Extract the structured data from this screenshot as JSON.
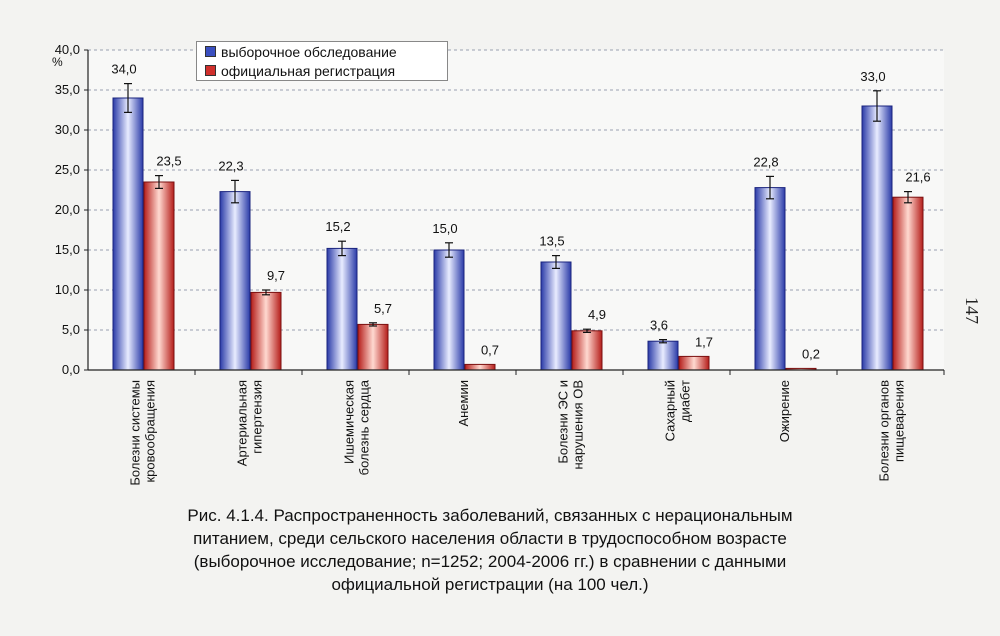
{
  "chart_data": {
    "type": "bar",
    "unit_label": "%",
    "ylim": [
      0,
      40
    ],
    "yticks": [
      "0,0",
      "5,0",
      "10,0",
      "15,0",
      "20,0",
      "25,0",
      "30,0",
      "35,0",
      "40,0"
    ],
    "grid": true,
    "categories": [
      [
        "Болезни системы",
        "кровообращения"
      ],
      [
        "Артериальная",
        "гипертензия"
      ],
      [
        "Ишемическая",
        "болезнь сердца"
      ],
      [
        "Анемии"
      ],
      [
        "Болезни ЭС и",
        "нарушения ОВ"
      ],
      [
        "Сахарный",
        "диабет"
      ],
      [
        "Ожирение"
      ],
      [
        "Болезни органов",
        "пищеварения"
      ]
    ],
    "series": [
      {
        "name": "выборочное обследование",
        "color": "#3a4fc0",
        "values": [
          34.0,
          22.3,
          15.2,
          15.0,
          13.5,
          3.6,
          22.8,
          33.0
        ],
        "labels": [
          "34,0",
          "22,3",
          "15,2",
          "15,0",
          "13,5",
          "3,6",
          "22,8",
          "33,0"
        ],
        "error": [
          1.8,
          1.4,
          0.9,
          0.9,
          0.8,
          0.2,
          1.4,
          1.9
        ]
      },
      {
        "name": "официальная регистрация",
        "color": "#d0302c",
        "values": [
          23.5,
          9.7,
          5.7,
          0.7,
          4.9,
          1.7,
          0.2,
          21.6
        ],
        "labels": [
          "23,5",
          "9,7",
          "5,7",
          "0,7",
          "4,9",
          "1,7",
          "0,2",
          "21,6"
        ],
        "error": [
          0.8,
          0.3,
          0.2,
          0.0,
          0.2,
          0.0,
          0.0,
          0.7
        ]
      }
    ],
    "legend_position": "top-left"
  },
  "caption": {
    "line1": "Рис. 4.1.4. Распространенность заболеваний, связанных с нерациональным",
    "line2": "питанием, среди сельского населения области в трудоспособном возрасте",
    "line3": "(выборочное исследование; n=1252; 2004-2006 гг.) в сравнении с данными",
    "line4": "официальной регистрации (на 100 чел.)"
  },
  "page_number": "147"
}
